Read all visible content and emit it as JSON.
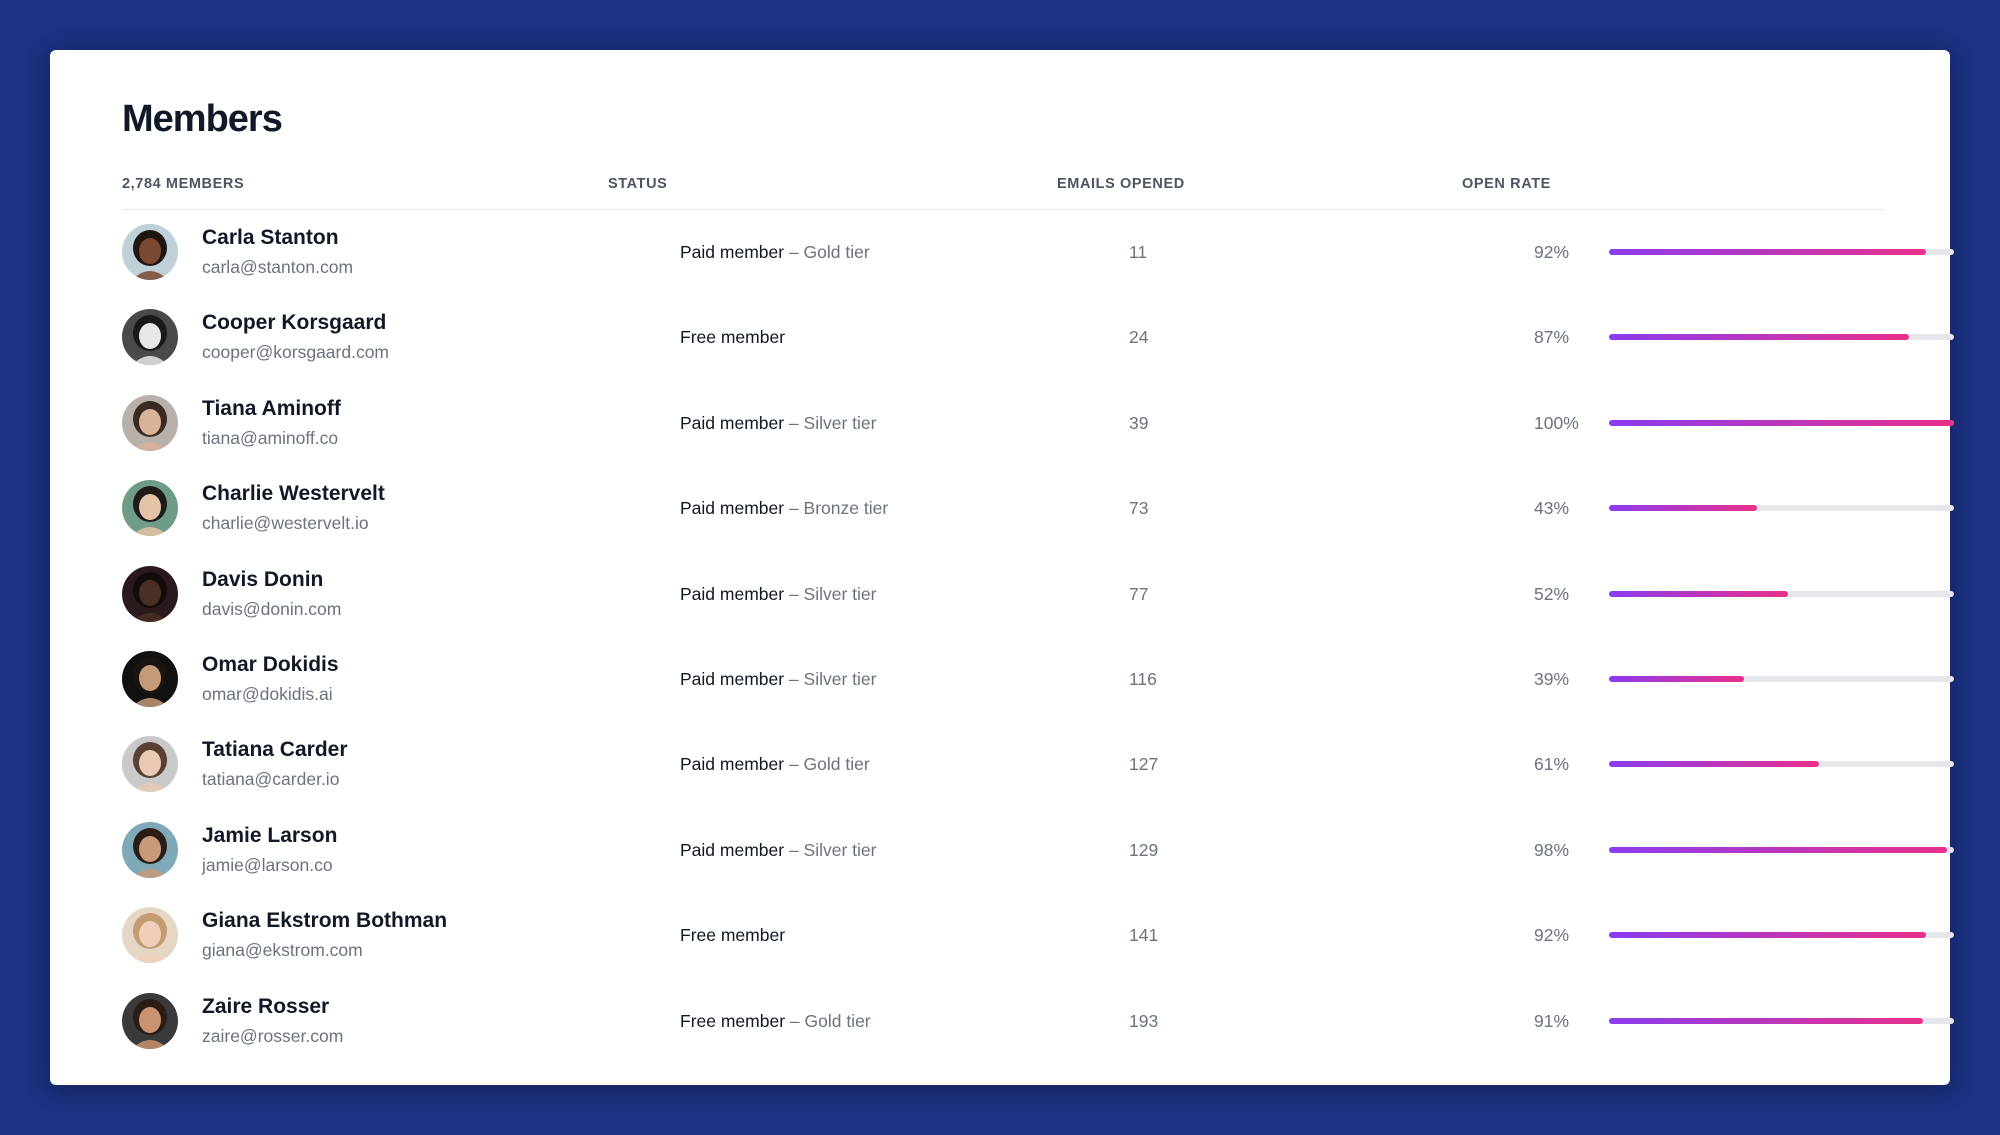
{
  "page": {
    "title": "Members"
  },
  "columns": {
    "members": "2,784 MEMBERS",
    "status": "STATUS",
    "emails_opened": "EMAILS OPENED",
    "open_rate": "OPEN RATE"
  },
  "colors": {
    "background": "#1c3282",
    "bar_start": "#8b3cf0",
    "bar_end": "#e9308a",
    "bar_track": "#e5e7eb"
  },
  "members": [
    {
      "name": "Carla Stanton",
      "email": "carla@stanton.com",
      "status": "Paid member",
      "tier": " – Gold tier",
      "emails_opened": "11",
      "open_rate": "92%",
      "open_rate_value": 92,
      "avatar": {
        "skin": "#7a4a33",
        "hair": "#1f1611",
        "bg": "#bfd0d8"
      }
    },
    {
      "name": "Cooper Korsgaard",
      "email": "cooper@korsgaard.com",
      "status": "Free member",
      "tier": "",
      "emails_opened": "24",
      "open_rate": "87%",
      "open_rate_value": 87,
      "avatar": {
        "skin": "#e8e8e8",
        "hair": "#1a1a1a",
        "bg": "#4a4a4a"
      }
    },
    {
      "name": "Tiana Aminoff",
      "email": "tiana@aminoff.co",
      "status": "Paid member",
      "tier": " – Silver tier",
      "emails_opened": "39",
      "open_rate": "100%",
      "open_rate_value": 100,
      "avatar": {
        "skin": "#d9b29a",
        "hair": "#3b2a22",
        "bg": "#b8b0aa"
      }
    },
    {
      "name": "Charlie Westervelt",
      "email": "charlie@westervelt.io",
      "status": "Paid member",
      "tier": " – Bronze tier",
      "emails_opened": "73",
      "open_rate": "43%",
      "open_rate_value": 43,
      "avatar": {
        "skin": "#e4c3a6",
        "hair": "#1e1b1a",
        "bg": "#6f9c86"
      }
    },
    {
      "name": "Davis Donin",
      "email": "davis@donin.com",
      "status": "Paid member",
      "tier": " – Silver tier",
      "emails_opened": "77",
      "open_rate": "52%",
      "open_rate_value": 52,
      "avatar": {
        "skin": "#4a3024",
        "hair": "#120c0a",
        "bg": "#2a1a1e"
      }
    },
    {
      "name": "Omar Dokidis",
      "email": "omar@dokidis.ai",
      "status": "Paid member",
      "tier": " – Silver tier",
      "emails_opened": "116",
      "open_rate": "39%",
      "open_rate_value": 39,
      "avatar": {
        "skin": "#c59a78",
        "hair": "#1a1410",
        "bg": "#111111"
      }
    },
    {
      "name": "Tatiana Carder",
      "email": "tatiana@carder.io",
      "status": "Paid member",
      "tier": " – Gold tier",
      "emails_opened": "127",
      "open_rate": "61%",
      "open_rate_value": 61,
      "avatar": {
        "skin": "#e7c9b4",
        "hair": "#5a4032",
        "bg": "#c9c9c9"
      }
    },
    {
      "name": "Jamie Larson",
      "email": "jamie@larson.co",
      "status": "Paid member",
      "tier": " – Silver tier",
      "emails_opened": "129",
      "open_rate": "98%",
      "open_rate_value": 98,
      "avatar": {
        "skin": "#c89a7a",
        "hair": "#2a1d16",
        "bg": "#7fa8b8"
      }
    },
    {
      "name": "Giana Ekstrom Bothman",
      "email": "giana@ekstrom.com",
      "status": "Free member",
      "tier": "",
      "emails_opened": "141",
      "open_rate": "92%",
      "open_rate_value": 92,
      "avatar": {
        "skin": "#efcfb8",
        "hair": "#c49a70",
        "bg": "#e6d6c6"
      }
    },
    {
      "name": "Zaire Rosser",
      "email": "zaire@rosser.com",
      "status": "Free member",
      "tier": " – Gold tier",
      "emails_opened": "193",
      "open_rate": "91%",
      "open_rate_value": 91,
      "avatar": {
        "skin": "#c89470",
        "hair": "#2b1c14",
        "bg": "#3a3a3a"
      }
    }
  ]
}
